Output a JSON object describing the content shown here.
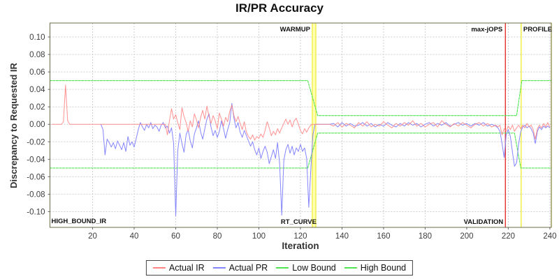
{
  "chart_data": {
    "type": "line",
    "title": "IR/PR Accuracy",
    "legend_position": "bottom",
    "x_axis": {
      "label": "Iteration",
      "min": -0.5,
      "max": 240.7,
      "ticks": [
        20,
        40,
        60,
        80,
        100,
        120,
        140,
        160,
        180,
        200,
        220,
        240
      ]
    },
    "y_axis": {
      "label": "Discrepancy to Requested IR",
      "min": -0.118,
      "max": 0.116,
      "tick_values": [
        0.1,
        0.08,
        0.06,
        0.04,
        0.02,
        0.0,
        -0.02,
        -0.04,
        -0.06,
        -0.08,
        -0.1
      ],
      "tick_labels": [
        "0.10",
        "0.08",
        "0.06",
        "0.04",
        "0.02",
        "0.00",
        "-0.02",
        "-0.04",
        "-0.06",
        "-0.08",
        "-0.10"
      ]
    },
    "grid": true,
    "colors": {
      "actual_ir": "#ff8585",
      "actual_pr": "#8585ff",
      "bound": "#4fe44f"
    },
    "legend": [
      {
        "label": "Actual IR",
        "color": "#ff8585"
      },
      {
        "label": "Actual PR",
        "color": "#8585ff"
      },
      {
        "label": "Low Bound",
        "color": "#4fe44f"
      },
      {
        "label": "High Bound",
        "color": "#4fe44f"
      }
    ],
    "markers": {
      "band": {
        "x0": 125.7,
        "x1": 127.4,
        "fill": "#ffffb3",
        "line_color": "#f0ec2e",
        "top_label": "WARMUP",
        "bottom_label": "RT_CURVE"
      },
      "lines": [
        {
          "x": 218.6,
          "color": "#e32222",
          "top_label": "max-jOPS",
          "bottom_label": "VALIDATION",
          "label_side": "left"
        },
        {
          "x": 226.2,
          "color": "#f0ec2e",
          "top_label": "PROFILE",
          "bottom_label": "",
          "label_side": "right"
        },
        {
          "x": 240.7,
          "color": "#f0ec2e",
          "top_label": "",
          "bottom_label": "",
          "label_side": "right"
        }
      ],
      "corner_label": "HIGH_BOUND_IR"
    },
    "series": {
      "low_bound": [
        [
          -0.5,
          -0.05
        ],
        [
          123.5,
          -0.05
        ],
        [
          128.3,
          -0.01
        ],
        [
          223,
          -0.01
        ],
        [
          226,
          -0.05
        ],
        [
          240.7,
          -0.05
        ]
      ],
      "high_bound": [
        [
          -0.5,
          0.05
        ],
        [
          123.5,
          0.05
        ],
        [
          128.3,
          0.01
        ],
        [
          224,
          0.01
        ],
        [
          226.5,
          0.05
        ],
        [
          240.7,
          0.05
        ]
      ],
      "actual_ir": [
        [
          0.4,
          0
        ],
        [
          5,
          0
        ],
        [
          6,
          0.003
        ],
        [
          7,
          0.045
        ],
        [
          8,
          0.004
        ],
        [
          9,
          0
        ],
        [
          55,
          0
        ],
        [
          56,
          -0.012
        ],
        [
          57,
          0.004
        ],
        [
          58,
          0.018
        ],
        [
          59,
          0.006
        ],
        [
          60,
          0.011
        ],
        [
          61,
          0.002
        ],
        [
          62,
          -0.006
        ],
        [
          63,
          0.019
        ],
        [
          64,
          0.009
        ],
        [
          65,
          0.002
        ],
        [
          66,
          -0.008
        ],
        [
          67,
          0.004
        ],
        [
          68,
          -0.003
        ],
        [
          69,
          0.012
        ],
        [
          70,
          0.005
        ],
        [
          71,
          -0.004
        ],
        [
          72,
          0.008
        ],
        [
          73,
          0.016
        ],
        [
          74,
          0.006
        ],
        [
          75,
          0.021
        ],
        [
          76,
          0.009
        ],
        [
          77,
          0.001
        ],
        [
          78,
          0.01
        ],
        [
          79,
          0.004
        ],
        [
          80,
          -0.005
        ],
        [
          81,
          0.013
        ],
        [
          82,
          0.006
        ],
        [
          83,
          -0.002
        ],
        [
          84,
          0.008
        ],
        [
          85,
          0.003
        ],
        [
          86,
          0.015
        ],
        [
          87,
          0.022
        ],
        [
          88,
          0.01
        ],
        [
          89,
          0.003
        ],
        [
          90,
          0.009
        ],
        [
          91,
          0.001
        ],
        [
          92,
          -0.006
        ],
        [
          93,
          0.003
        ],
        [
          94,
          -0.009
        ],
        [
          95,
          -0.014
        ],
        [
          96,
          -0.017
        ],
        [
          97,
          -0.012
        ],
        [
          98,
          -0.018
        ],
        [
          99,
          -0.014
        ],
        [
          100,
          -0.016
        ],
        [
          101,
          -0.011
        ],
        [
          102,
          -0.015
        ],
        [
          103,
          -0.007
        ],
        [
          104,
          0.003
        ],
        [
          105,
          -0.004
        ],
        [
          106,
          -0.013
        ],
        [
          107,
          -0.008
        ],
        [
          108,
          -0.012
        ],
        [
          109,
          -0.005
        ],
        [
          110,
          -0.01
        ],
        [
          111,
          -0.004
        ],
        [
          112,
          0.001
        ],
        [
          113,
          0.006
        ],
        [
          114,
          0
        ],
        [
          115,
          0.005
        ],
        [
          116,
          -0.003
        ],
        [
          117,
          0.004
        ],
        [
          118,
          0.007
        ],
        [
          119,
          0
        ],
        [
          120,
          -0.007
        ],
        [
          121,
          -0.011
        ],
        [
          122,
          -0.005
        ],
        [
          123,
          -0.009
        ],
        [
          124,
          -0.004
        ],
        [
          125,
          -0.001
        ],
        [
          126,
          0
        ],
        [
          127,
          0
        ],
        [
          134,
          0
        ],
        [
          136,
          -0.002
        ],
        [
          138,
          0.002
        ],
        [
          140,
          -0.003
        ],
        [
          142,
          0.001
        ],
        [
          144,
          -0.001
        ],
        [
          146,
          -0.004
        ],
        [
          148,
          0.002
        ],
        [
          150,
          -0.002
        ],
        [
          152,
          0.003
        ],
        [
          154,
          -0.003
        ],
        [
          156,
          0
        ],
        [
          158,
          -0.002
        ],
        [
          160,
          0.003
        ],
        [
          162,
          -0.001
        ],
        [
          164,
          -0.004
        ],
        [
          166,
          0.001
        ],
        [
          168,
          -0.002
        ],
        [
          170,
          0.002
        ],
        [
          172,
          -0.001
        ],
        [
          174,
          0.004
        ],
        [
          176,
          -0.002
        ],
        [
          178,
          0.001
        ],
        [
          180,
          -0.003
        ],
        [
          182,
          0
        ],
        [
          184,
          0.002
        ],
        [
          186,
          -0.003
        ],
        [
          188,
          0.004
        ],
        [
          190,
          0
        ],
        [
          192,
          -0.003
        ],
        [
          194,
          0.001
        ],
        [
          196,
          -0.002
        ],
        [
          198,
          0.002
        ],
        [
          200,
          -0.001
        ],
        [
          202,
          -0.004
        ],
        [
          204,
          0
        ],
        [
          206,
          0.002
        ],
        [
          208,
          -0.002
        ],
        [
          210,
          0.001
        ],
        [
          212,
          -0.003
        ],
        [
          214,
          -0.001
        ],
        [
          215,
          -0.003
        ],
        [
          216,
          -0.001
        ],
        [
          217,
          -0.012
        ],
        [
          218,
          -0.005
        ],
        [
          219,
          -0.008
        ],
        [
          220,
          -0.002
        ],
        [
          221,
          -0.006
        ],
        [
          222,
          -0.001
        ],
        [
          223,
          -0.008
        ],
        [
          224,
          -0.004
        ],
        [
          225,
          -0.001
        ],
        [
          226,
          -0.005
        ],
        [
          227,
          -0.001
        ],
        [
          228,
          -0.004
        ],
        [
          229,
          0.001
        ],
        [
          230,
          -0.003
        ],
        [
          231,
          -0.001
        ],
        [
          232,
          -0.006
        ],
        [
          233,
          -0.017
        ],
        [
          234,
          -0.005
        ],
        [
          235,
          -0.001
        ],
        [
          236,
          -0.004
        ],
        [
          237,
          0.001
        ],
        [
          238,
          -0.003
        ],
        [
          239,
          0.002
        ],
        [
          240,
          -0.003
        ]
      ],
      "actual_pr": [
        [
          24,
          0
        ],
        [
          25,
          -0.006
        ],
        [
          26,
          -0.035
        ],
        [
          27,
          -0.017
        ],
        [
          28,
          -0.021
        ],
        [
          29,
          -0.026
        ],
        [
          30,
          -0.021
        ],
        [
          31,
          -0.028
        ],
        [
          32,
          -0.019
        ],
        [
          33,
          -0.024
        ],
        [
          34,
          -0.029
        ],
        [
          35,
          -0.021
        ],
        [
          36,
          -0.031
        ],
        [
          37,
          -0.014
        ],
        [
          38,
          -0.024
        ],
        [
          39,
          -0.02
        ],
        [
          40,
          -0.026
        ],
        [
          41,
          -0.016
        ],
        [
          42,
          -0.006
        ],
        [
          43,
          0.002
        ],
        [
          44,
          -0.003
        ],
        [
          45,
          -0.007
        ],
        [
          46,
          0
        ],
        [
          47,
          -0.004
        ],
        [
          48,
          0.002
        ],
        [
          49,
          -0.005
        ],
        [
          50,
          -0.001
        ],
        [
          51,
          -0.003
        ],
        [
          52,
          -0.008
        ],
        [
          53,
          -0.001
        ],
        [
          54,
          0.002
        ],
        [
          55,
          -0.004
        ],
        [
          56,
          -0.002
        ],
        [
          57,
          -0.01
        ],
        [
          58,
          -0.004
        ],
        [
          59,
          -0.022
        ],
        [
          60,
          -0.105
        ],
        [
          61,
          -0.03
        ],
        [
          62,
          -0.01
        ],
        [
          63,
          -0.022
        ],
        [
          64,
          -0.032
        ],
        [
          65,
          -0.012
        ],
        [
          66,
          -0.006
        ],
        [
          67,
          -0.019
        ],
        [
          68,
          -0.027
        ],
        [
          69,
          -0.011
        ],
        [
          70,
          -0.004
        ],
        [
          71,
          0.004
        ],
        [
          72,
          -0.009
        ],
        [
          73,
          -0.017
        ],
        [
          74,
          -0.005
        ],
        [
          75,
          0.006
        ],
        [
          76,
          0.012
        ],
        [
          77,
          -0.003
        ],
        [
          78,
          -0.013
        ],
        [
          79,
          -0.007
        ],
        [
          80,
          -0.015
        ],
        [
          81,
          -0.008
        ],
        [
          82,
          0.004
        ],
        [
          83,
          -0.005
        ],
        [
          84,
          -0.016
        ],
        [
          85,
          -0.006
        ],
        [
          86,
          0.002
        ],
        [
          87,
          0.024
        ],
        [
          88,
          0.007
        ],
        [
          89,
          -0.004
        ],
        [
          90,
          0.002
        ],
        [
          91,
          -0.009
        ],
        [
          92,
          -0.015
        ],
        [
          93,
          -0.007
        ],
        [
          94,
          -0.013
        ],
        [
          95,
          -0.019
        ],
        [
          96,
          -0.025
        ],
        [
          97,
          -0.02
        ],
        [
          98,
          -0.029
        ],
        [
          99,
          -0.035
        ],
        [
          100,
          -0.027
        ],
        [
          101,
          -0.039
        ],
        [
          102,
          -0.031
        ],
        [
          103,
          -0.025
        ],
        [
          104,
          -0.032
        ],
        [
          105,
          -0.045
        ],
        [
          106,
          -0.037
        ],
        [
          107,
          -0.029
        ],
        [
          108,
          -0.039
        ],
        [
          109,
          -0.021
        ],
        [
          110,
          -0.045
        ],
        [
          111,
          -0.104
        ],
        [
          112,
          -0.041
        ],
        [
          113,
          -0.029
        ],
        [
          114,
          -0.023
        ],
        [
          115,
          -0.033
        ],
        [
          116,
          -0.025
        ],
        [
          117,
          -0.035
        ],
        [
          118,
          -0.027
        ],
        [
          119,
          -0.031
        ],
        [
          120,
          -0.023
        ],
        [
          121,
          -0.031
        ],
        [
          122,
          -0.027
        ],
        [
          123,
          -0.039
        ],
        [
          124,
          -0.095
        ],
        [
          125,
          -0.052
        ],
        [
          126,
          -0.012
        ],
        [
          127,
          0
        ],
        [
          134,
          0
        ],
        [
          136,
          0.001
        ],
        [
          138,
          -0.003
        ],
        [
          140,
          0.002
        ],
        [
          142,
          -0.002
        ],
        [
          144,
          0.001
        ],
        [
          146,
          -0.002
        ],
        [
          148,
          -0.001
        ],
        [
          150,
          0.002
        ],
        [
          152,
          -0.002
        ],
        [
          154,
          0.001
        ],
        [
          156,
          -0.003
        ],
        [
          158,
          0
        ],
        [
          160,
          -0.002
        ],
        [
          162,
          0.002
        ],
        [
          164,
          -0.001
        ],
        [
          166,
          -0.003
        ],
        [
          168,
          0.001
        ],
        [
          170,
          -0.002
        ],
        [
          172,
          0.002
        ],
        [
          174,
          -0.001
        ],
        [
          176,
          0.001
        ],
        [
          178,
          -0.003
        ],
        [
          180,
          0
        ],
        [
          182,
          0.002
        ],
        [
          184,
          -0.002
        ],
        [
          186,
          0.001
        ],
        [
          188,
          -0.001
        ],
        [
          190,
          0.002
        ],
        [
          192,
          -0.002
        ],
        [
          194,
          0
        ],
        [
          196,
          0.002
        ],
        [
          198,
          -0.001
        ],
        [
          200,
          0.001
        ],
        [
          202,
          -0.002
        ],
        [
          204,
          0.001
        ],
        [
          206,
          -0.001
        ],
        [
          208,
          0.002
        ],
        [
          210,
          -0.002
        ],
        [
          212,
          0
        ],
        [
          214,
          -0.002
        ],
        [
          215,
          -0.004
        ],
        [
          216,
          -0.008
        ],
        [
          217,
          -0.022
        ],
        [
          218,
          -0.038
        ],
        [
          219,
          -0.012
        ],
        [
          220,
          -0.006
        ],
        [
          221,
          -0.014
        ],
        [
          222,
          -0.032
        ],
        [
          223,
          -0.048
        ],
        [
          224,
          -0.044
        ],
        [
          225,
          -0.022
        ],
        [
          226,
          -0.008
        ],
        [
          227,
          -0.003
        ],
        [
          228,
          -0.001
        ],
        [
          229,
          -0.004
        ],
        [
          230,
          -0.002
        ],
        [
          231,
          -0.005
        ],
        [
          232,
          -0.01
        ],
        [
          233,
          -0.022
        ],
        [
          234,
          -0.008
        ],
        [
          235,
          -0.003
        ],
        [
          236,
          -0.006
        ],
        [
          237,
          -0.002
        ],
        [
          238,
          -0.004
        ],
        [
          239,
          -0.002
        ],
        [
          240,
          -0.004
        ]
      ]
    }
  }
}
